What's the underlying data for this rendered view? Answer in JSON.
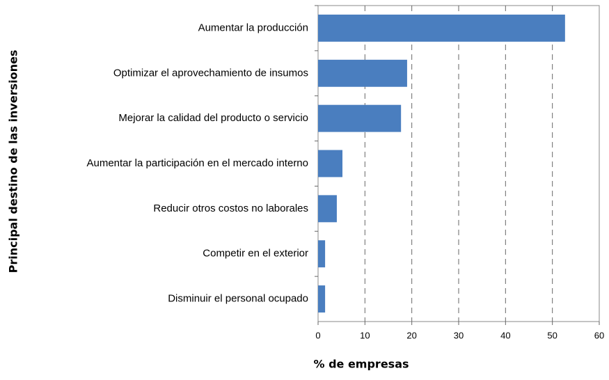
{
  "chart_data": {
    "type": "bar",
    "orientation": "horizontal",
    "categories": [
      "Aumentar la producción",
      "Optimizar el aprovechamiento de insumos",
      "Mejorar la calidad del producto o servicio",
      "Aumentar la participación en el mercado interno",
      "Reducir otros costos no laborales",
      "Competir en el exterior",
      "Disminuir el personal ocupado"
    ],
    "values": [
      52.7,
      19.0,
      17.7,
      5.2,
      4.0,
      1.5,
      1.5
    ],
    "color": "#4a7ebf",
    "xlabel": "% de empresas",
    "ylabel": "Principal destino de las inversiones",
    "xlim": [
      0,
      60
    ],
    "xticks": [
      0,
      10,
      20,
      30,
      40,
      50,
      60
    ],
    "grid": true
  }
}
